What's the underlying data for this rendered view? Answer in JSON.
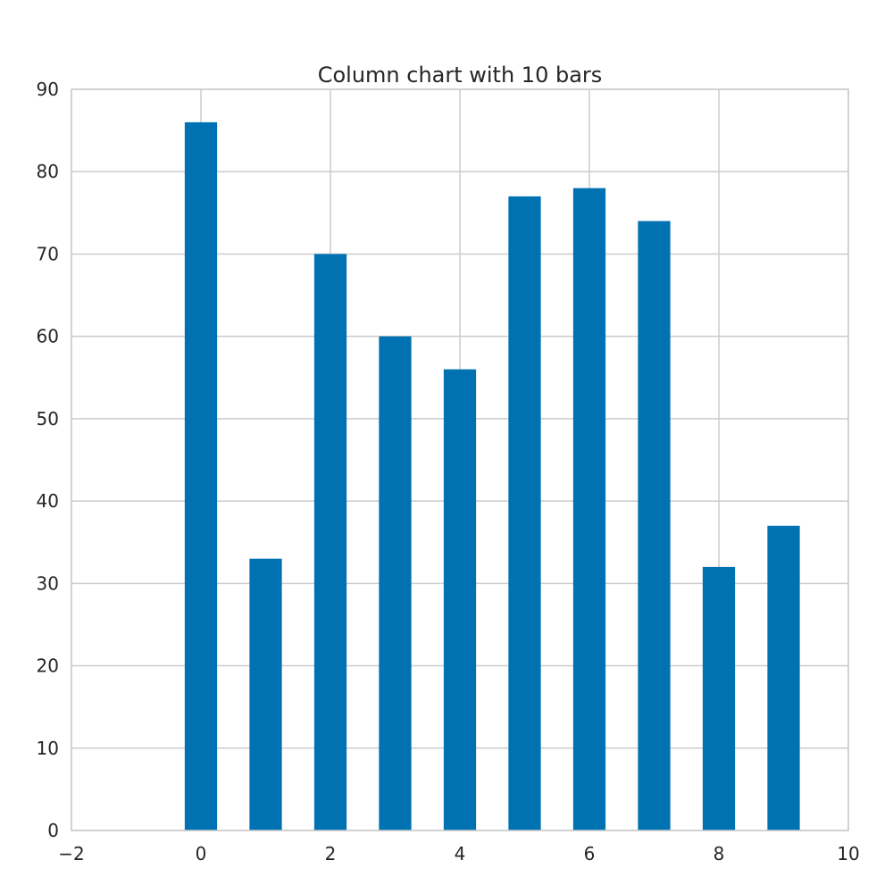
{
  "chart_data": {
    "type": "bar",
    "title": "Column chart with 10 bars",
    "xlabel": "",
    "ylabel": "",
    "x": [
      0,
      1,
      2,
      3,
      4,
      5,
      6,
      7,
      8,
      9
    ],
    "values": [
      86,
      33,
      70,
      60,
      56,
      77,
      78,
      74,
      32,
      37
    ],
    "xlim": [
      -2,
      10
    ],
    "ylim": [
      0,
      90
    ],
    "x_ticks": [
      -2,
      0,
      2,
      4,
      6,
      8,
      10
    ],
    "y_ticks": [
      0,
      10,
      20,
      30,
      40,
      50,
      60,
      70,
      80,
      90
    ],
    "x_tick_labels": [
      "−2",
      "0",
      "2",
      "4",
      "6",
      "8",
      "10"
    ],
    "y_tick_labels": [
      "0",
      "10",
      "20",
      "30",
      "40",
      "50",
      "60",
      "70",
      "80",
      "90"
    ],
    "bar_width": 0.5,
    "grid": true,
    "legend": "none",
    "colors": {
      "bar": "#0072b2",
      "grid": "#cccccc",
      "axis": "#cccccc",
      "text": "#262626"
    }
  }
}
